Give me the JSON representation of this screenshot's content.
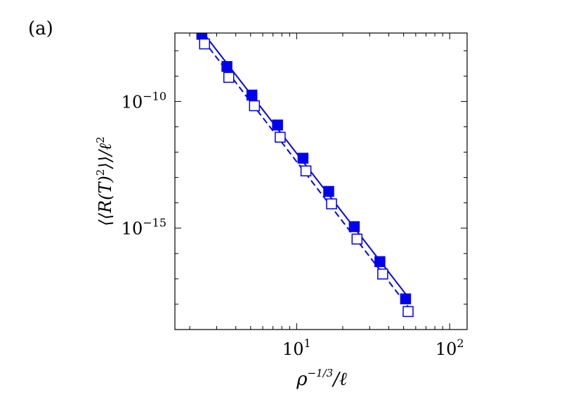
{
  "panel_label": "(a)",
  "chart_data": {
    "type": "scatter",
    "title": "",
    "xlabel": "ρ^(−1/3)/ℓ",
    "ylabel": "⟨⟨R(T)²⟩⟩/ℓ²",
    "x_scale": "log",
    "y_scale": "log",
    "xlim": [
      1.6,
      130
    ],
    "ylim_log10": [
      -19,
      -7.3
    ],
    "x_ticks": [
      {
        "value": 10,
        "label": "10",
        "exp": "1"
      },
      {
        "value": 100,
        "label": "10",
        "exp": "2"
      }
    ],
    "y_ticks": [
      {
        "value": 1e-10,
        "label": "10",
        "exp": "−10"
      },
      {
        "value": 1e-15,
        "label": "10",
        "exp": "−15"
      }
    ],
    "grid": false,
    "legend": "none",
    "color": "#0000ee",
    "series": [
      {
        "marker": "filled-square",
        "line": "solid",
        "x": [
          2.4,
          3.5,
          5.1,
          7.5,
          11.0,
          16.2,
          23.8,
          35.0,
          51.5
        ],
        "y_log10": [
          -7.35,
          -8.62,
          -9.75,
          -10.93,
          -12.24,
          -13.55,
          -14.94,
          -16.32,
          -17.79
        ]
      },
      {
        "marker": "open-square",
        "line": "dashed",
        "x": [
          2.5,
          3.6,
          5.3,
          7.8,
          11.5,
          16.9,
          24.8,
          36.5,
          53.5
        ],
        "y_log10": [
          -7.73,
          -9.05,
          -10.17,
          -11.41,
          -12.74,
          -14.04,
          -15.43,
          -16.81,
          -18.29
        ]
      }
    ]
  }
}
